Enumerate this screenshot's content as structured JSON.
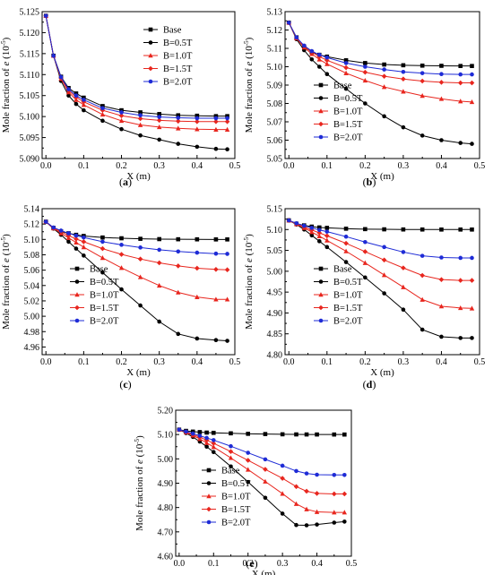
{
  "figure": {
    "panels": [
      {
        "panel_label": "(a)",
        "ylabel_prefix": "Mole fraction of ",
        "ylabel_italic": "e",
        "ylabel_unit": " (10",
        "ylabel_exp": "-5",
        "ylabel_close": ")"
      },
      {
        "panel_label": "(b)",
        "ylabel_prefix": "Mole fraction of ",
        "ylabel_italic": "e",
        "ylabel_unit": " (10",
        "ylabel_exp": "-5",
        "ylabel_close": ")"
      },
      {
        "panel_label": "(c)",
        "ylabel_prefix": "Mole fraction of ",
        "ylabel_italic": "e",
        "ylabel_unit": " (10",
        "ylabel_exp": "-5",
        "ylabel_close": ")"
      },
      {
        "panel_label": "(d)",
        "ylabel_prefix": "Mole fraction of ",
        "ylabel_italic": "e",
        "ylabel_unit": " (10",
        "ylabel_exp": "-5",
        "ylabel_close": ")"
      },
      {
        "panel_label": "(e)",
        "ylabel_prefix": "Mole fraction of ",
        "ylabel_italic": "e",
        "ylabel_unit": " (10",
        "ylabel_exp": "-5",
        "ylabel_close": ")"
      }
    ]
  },
  "chart_data": [
    {
      "type": "line",
      "xlabel": "X (m)",
      "ylabel": "Mole fraction of e (10-5)",
      "xlim": [
        -0.01,
        0.5
      ],
      "ylim": [
        5.09,
        5.125
      ],
      "xticks": [
        "0.0",
        "0.1",
        "0.2",
        "0.3",
        "0.4",
        "0.5"
      ],
      "yticks": [
        "5.090",
        "5.095",
        "5.100",
        "5.105",
        "5.110",
        "5.115",
        "5.120",
        "5.125"
      ],
      "legend_position": "top-right",
      "x": [
        0.0,
        0.02,
        0.04,
        0.06,
        0.08,
        0.1,
        0.15,
        0.2,
        0.25,
        0.3,
        0.35,
        0.4,
        0.45,
        0.48
      ],
      "series": [
        {
          "name": "Base",
          "color": "#000000",
          "marker": "square",
          "values": [
            5.124,
            5.1145,
            5.1095,
            5.1068,
            5.1055,
            5.1045,
            5.1025,
            5.1015,
            5.101,
            5.1006,
            5.1003,
            5.1002,
            5.1001,
            5.1001
          ]
        },
        {
          "name": "B=0.5T",
          "color": "#000000",
          "marker": "circle",
          "values": [
            5.124,
            5.1145,
            5.1085,
            5.105,
            5.103,
            5.1015,
            5.099,
            5.097,
            5.0955,
            5.0945,
            5.0935,
            5.0928,
            5.0923,
            5.0922
          ]
        },
        {
          "name": "B=1.0T",
          "color": "#e8261e",
          "marker": "triangle",
          "values": [
            5.124,
            5.1145,
            5.109,
            5.1058,
            5.104,
            5.1028,
            5.1005,
            5.099,
            5.098,
            5.0975,
            5.0972,
            5.097,
            5.0969,
            5.0969
          ]
        },
        {
          "name": "B=1.5T",
          "color": "#e8261e",
          "marker": "diamond",
          "values": [
            5.124,
            5.1145,
            5.1092,
            5.1062,
            5.1046,
            5.1035,
            5.1015,
            5.1002,
            5.0995,
            5.0991,
            5.0989,
            5.0988,
            5.0988,
            5.0988
          ]
        },
        {
          "name": "B=2.0T",
          "color": "#1e2bd6",
          "marker": "circle",
          "values": [
            5.124,
            5.1145,
            5.1094,
            5.1065,
            5.105,
            5.104,
            5.102,
            5.101,
            5.1003,
            5.0999,
            5.0997,
            5.0996,
            5.0996,
            5.0996
          ]
        }
      ]
    },
    {
      "type": "line",
      "xlabel": "X (m)",
      "ylabel": "Mole fraction of e (10-5)",
      "xlim": [
        -0.01,
        0.5
      ],
      "ylim": [
        5.05,
        5.13
      ],
      "xticks": [
        "0.0",
        "0.1",
        "0.2",
        "0.3",
        "0.4",
        "0.5"
      ],
      "yticks": [
        "5.05",
        "5.06",
        "5.07",
        "5.08",
        "5.09",
        "5.10",
        "5.11",
        "5.12",
        "5.13"
      ],
      "legend_position": "bottom-left",
      "x": [
        0.0,
        0.02,
        0.04,
        0.06,
        0.08,
        0.1,
        0.15,
        0.2,
        0.25,
        0.3,
        0.35,
        0.4,
        0.45,
        0.48
      ],
      "series": [
        {
          "name": "Base",
          "color": "#000000",
          "marker": "square",
          "values": [
            5.124,
            5.116,
            5.111,
            5.108,
            5.1065,
            5.1055,
            5.1035,
            5.102,
            5.1012,
            5.1008,
            5.1006,
            5.1005,
            5.1004,
            5.1004
          ]
        },
        {
          "name": "B=0.5T",
          "color": "#000000",
          "marker": "circle",
          "values": [
            5.124,
            5.115,
            5.109,
            5.104,
            5.1,
            5.096,
            5.088,
            5.08,
            5.073,
            5.067,
            5.0625,
            5.06,
            5.0585,
            5.058
          ]
        },
        {
          "name": "B=1.0T",
          "color": "#e8261e",
          "marker": "triangle",
          "values": [
            5.124,
            5.1155,
            5.1105,
            5.107,
            5.104,
            5.1015,
            5.0965,
            5.0925,
            5.089,
            5.0865,
            5.0842,
            5.0825,
            5.0812,
            5.0808
          ]
        },
        {
          "name": "B=1.5T",
          "color": "#e8261e",
          "marker": "diamond",
          "values": [
            5.124,
            5.1158,
            5.1112,
            5.108,
            5.1055,
            5.1035,
            5.0995,
            5.097,
            5.0948,
            5.0933,
            5.0922,
            5.0915,
            5.0912,
            5.0912
          ]
        },
        {
          "name": "B=2.0T",
          "color": "#1e2bd6",
          "marker": "circle",
          "values": [
            5.124,
            5.116,
            5.1115,
            5.1085,
            5.1065,
            5.105,
            5.102,
            5.1,
            5.0985,
            5.0972,
            5.0965,
            5.096,
            5.0958,
            5.0958
          ]
        }
      ]
    },
    {
      "type": "line",
      "xlabel": "X (m)",
      "ylabel": "Mole fraction of e (10-5)",
      "xlim": [
        -0.01,
        0.5
      ],
      "ylim": [
        4.95,
        5.14
      ],
      "xticks": [
        "0.0",
        "0.1",
        "0.2",
        "0.3",
        "0.4",
        "0.5"
      ],
      "yticks": [
        "4.96",
        "4.98",
        "5.00",
        "5.02",
        "5.04",
        "5.06",
        "5.08",
        "5.10",
        "5.12",
        "5.14"
      ],
      "legend_position": "bottom-left",
      "x": [
        0.0,
        0.02,
        0.04,
        0.06,
        0.08,
        0.1,
        0.15,
        0.2,
        0.25,
        0.3,
        0.35,
        0.4,
        0.45,
        0.48
      ],
      "series": [
        {
          "name": "Base",
          "color": "#000000",
          "marker": "square",
          "values": [
            5.123,
            5.115,
            5.1105,
            5.108,
            5.106,
            5.1045,
            5.1025,
            5.1015,
            5.1008,
            5.1004,
            5.1002,
            5.1001,
            5.1,
            5.1
          ]
        },
        {
          "name": "B=0.5T",
          "color": "#000000",
          "marker": "circle",
          "values": [
            5.123,
            5.114,
            5.106,
            5.097,
            5.088,
            5.079,
            5.057,
            5.035,
            5.014,
            4.993,
            4.977,
            4.971,
            4.969,
            4.968
          ]
        },
        {
          "name": "B=1.0T",
          "color": "#e8261e",
          "marker": "triangle",
          "values": [
            5.123,
            5.1145,
            5.108,
            5.102,
            5.096,
            5.09,
            5.076,
            5.063,
            5.051,
            5.04,
            5.031,
            5.025,
            5.022,
            5.022
          ]
        },
        {
          "name": "B=1.5T",
          "color": "#e8261e",
          "marker": "diamond",
          "values": [
            5.123,
            5.115,
            5.11,
            5.105,
            5.1005,
            5.097,
            5.088,
            5.0805,
            5.0745,
            5.0695,
            5.0655,
            5.0625,
            5.061,
            5.0605
          ]
        },
        {
          "name": "B=2.0T",
          "color": "#1e2bd6",
          "marker": "circle",
          "values": [
            5.123,
            5.1155,
            5.1115,
            5.108,
            5.105,
            5.1025,
            5.097,
            5.093,
            5.0895,
            5.0865,
            5.0843,
            5.0828,
            5.0815,
            5.0812
          ]
        }
      ]
    },
    {
      "type": "line",
      "xlabel": "X (m)",
      "ylabel": "Mole fraction of e (10-5)",
      "xlim": [
        -0.01,
        0.5
      ],
      "ylim": [
        4.8,
        5.15
      ],
      "xticks": [
        "0.0",
        "0.1",
        "0.2",
        "0.3",
        "0.4",
        "0.5"
      ],
      "yticks": [
        "4.80",
        "4.85",
        "4.90",
        "4.95",
        "5.00",
        "5.05",
        "5.10",
        "5.15"
      ],
      "legend_position": "bottom-left",
      "x": [
        0.0,
        0.02,
        0.04,
        0.06,
        0.08,
        0.1,
        0.15,
        0.2,
        0.25,
        0.3,
        0.35,
        0.4,
        0.45,
        0.48
      ],
      "series": [
        {
          "name": "Base",
          "color": "#000000",
          "marker": "square",
          "values": [
            5.122,
            5.114,
            5.11,
            5.107,
            5.105,
            5.104,
            5.102,
            5.101,
            5.1005,
            5.1002,
            5.1001,
            5.1,
            5.1,
            5.1
          ]
        },
        {
          "name": "B=0.5T",
          "color": "#000000",
          "marker": "circle",
          "values": [
            5.122,
            5.112,
            5.1,
            5.086,
            5.072,
            5.058,
            5.022,
            4.985,
            4.947,
            4.908,
            4.86,
            4.843,
            4.84,
            4.84
          ]
        },
        {
          "name": "B=1.0T",
          "color": "#e8261e",
          "marker": "triangle",
          "values": [
            5.122,
            5.113,
            5.104,
            5.094,
            5.084,
            5.074,
            5.048,
            5.02,
            4.991,
            4.962,
            4.932,
            4.916,
            4.912,
            4.911
          ]
        },
        {
          "name": "B=1.5T",
          "color": "#e8261e",
          "marker": "diamond",
          "values": [
            5.122,
            5.114,
            5.106,
            5.099,
            5.092,
            5.085,
            5.067,
            5.047,
            5.027,
            5.008,
            4.99,
            4.98,
            4.978,
            4.978
          ]
        },
        {
          "name": "B=2.0T",
          "color": "#1e2bd6",
          "marker": "circle",
          "values": [
            5.122,
            5.115,
            5.109,
            5.104,
            5.099,
            5.095,
            5.083,
            5.07,
            5.058,
            5.046,
            5.037,
            5.033,
            5.032,
            5.032
          ]
        }
      ]
    },
    {
      "type": "line",
      "xlabel": "X (m)",
      "ylabel": "Mole fraction of e (10-5)",
      "xlim": [
        -0.01,
        0.5
      ],
      "ylim": [
        4.6,
        5.2
      ],
      "xticks": [
        "0.0",
        "0.1",
        "0.2",
        "0.3",
        "0.4",
        "0.5"
      ],
      "yticks": [
        "4.60",
        "4.70",
        "4.80",
        "4.90",
        "5.00",
        "5.10",
        "5.20"
      ],
      "legend_position": "bottom-left",
      "x": [
        0.0,
        0.02,
        0.04,
        0.06,
        0.08,
        0.1,
        0.15,
        0.2,
        0.25,
        0.3,
        0.34,
        0.37,
        0.4,
        0.45,
        0.48
      ],
      "series": [
        {
          "name": "Base",
          "color": "#000000",
          "marker": "square",
          "values": [
            5.12,
            5.115,
            5.112,
            5.11,
            5.108,
            5.107,
            5.105,
            5.103,
            5.102,
            5.101,
            5.1005,
            5.1003,
            5.1002,
            5.1001,
            5.1
          ]
        },
        {
          "name": "B=0.5T",
          "color": "#000000",
          "marker": "circle",
          "values": [
            5.12,
            5.106,
            5.09,
            5.071,
            5.05,
            5.028,
            4.969,
            4.905,
            4.84,
            4.775,
            4.728,
            4.727,
            4.73,
            4.738,
            4.742
          ]
        },
        {
          "name": "B=1.0T",
          "color": "#e8261e",
          "marker": "triangle",
          "values": [
            5.12,
            5.109,
            5.096,
            5.082,
            5.066,
            5.049,
            5.004,
            4.956,
            4.907,
            4.857,
            4.815,
            4.793,
            4.782,
            4.78,
            4.78
          ]
        },
        {
          "name": "B=1.5T",
          "color": "#e8261e",
          "marker": "diamond",
          "values": [
            5.12,
            5.111,
            5.1,
            5.089,
            5.077,
            5.064,
            5.03,
            4.994,
            4.957,
            4.92,
            4.886,
            4.867,
            4.858,
            4.856,
            4.856
          ]
        },
        {
          "name": "B=2.0T",
          "color": "#1e2bd6",
          "marker": "circle",
          "values": [
            5.12,
            5.112,
            5.104,
            5.095,
            5.086,
            5.077,
            5.052,
            5.025,
            4.998,
            4.972,
            4.95,
            4.94,
            4.935,
            4.934,
            4.934
          ]
        }
      ]
    }
  ]
}
